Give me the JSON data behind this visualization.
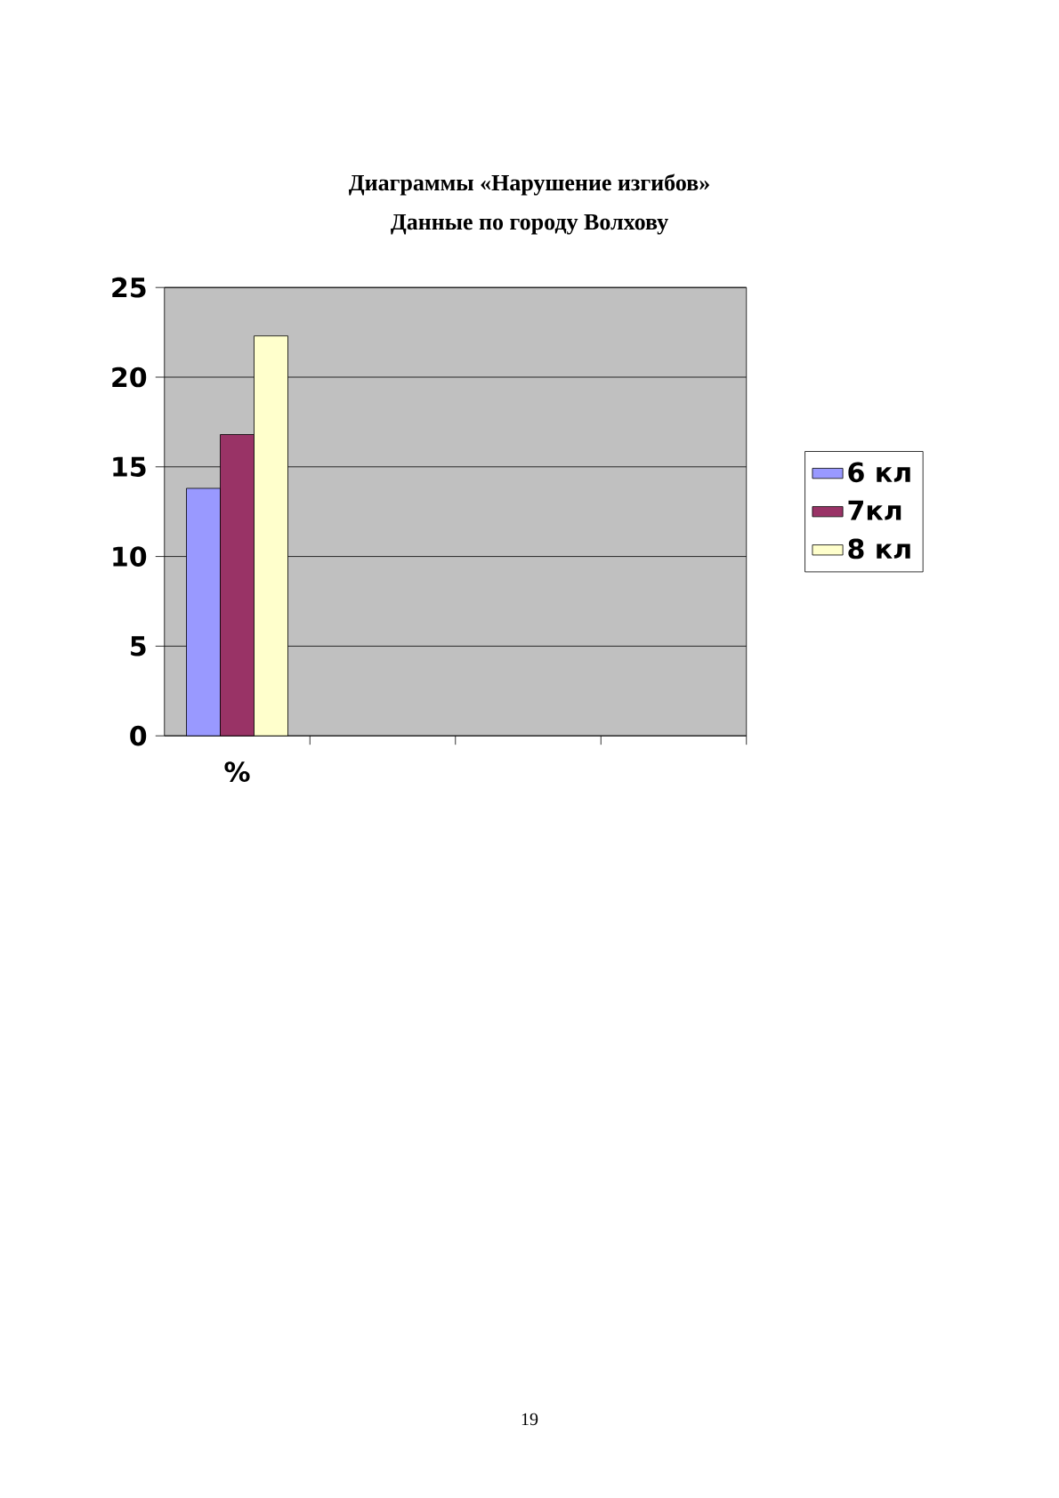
{
  "chart_data": {
    "type": "bar",
    "title": "Диаграммы «Нарушение изгибов»",
    "subtitle": "Данные по городу Волхову",
    "categories": [
      "%",
      null,
      null,
      null
    ],
    "series": [
      {
        "name": "6 кл",
        "color": "#9999ff",
        "values": [
          13.8,
          null,
          null,
          null
        ]
      },
      {
        "name": "7кл",
        "color": "#993366",
        "values": [
          16.8,
          null,
          null,
          null
        ]
      },
      {
        "name": "8 кл",
        "color": "#ffffcc",
        "values": [
          22.3,
          null,
          null,
          null
        ]
      }
    ],
    "ylim": [
      0,
      25
    ],
    "yticks": [
      0,
      5,
      10,
      15,
      20,
      25
    ],
    "grid": "y",
    "legend": "right",
    "annotations": [
      "19"
    ]
  }
}
